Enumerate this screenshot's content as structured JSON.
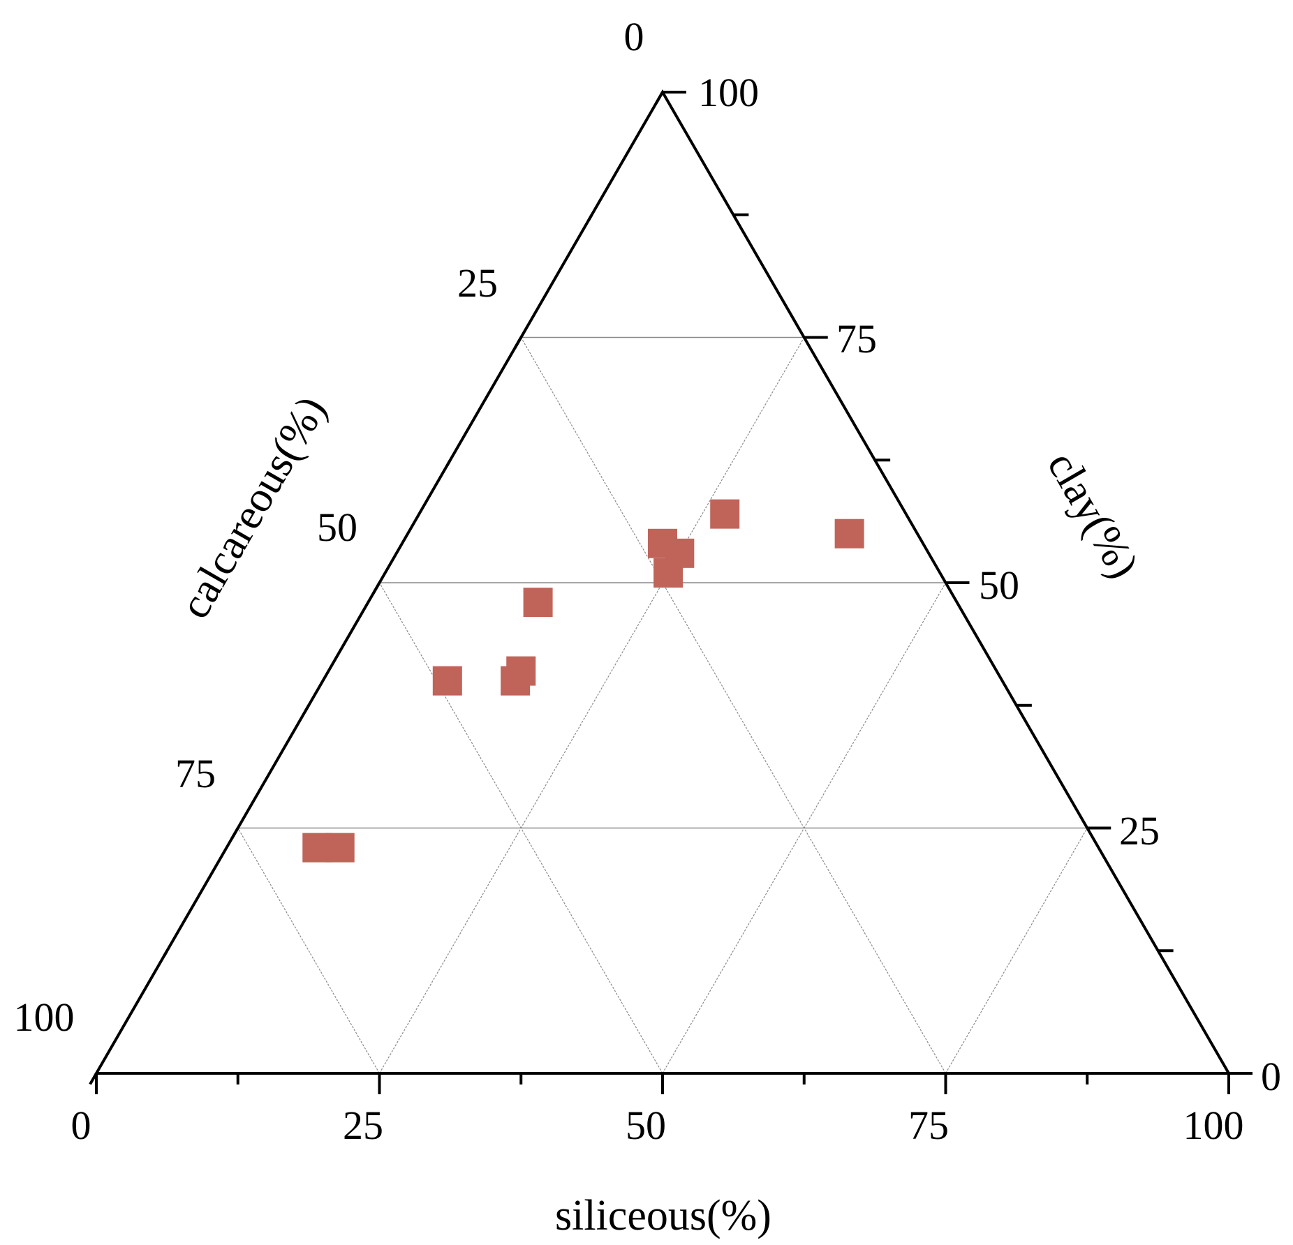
{
  "chart_data": {
    "type": "scatter",
    "subtype": "ternary",
    "marker": "square",
    "marker_color": "#c0645a",
    "axis_color": "#000000",
    "grid_color": "#8a8a8a",
    "grid": true,
    "grid_step": 25,
    "axes": {
      "siliceous": {
        "label": "siliceous(%)",
        "ticks": [
          "0",
          "25",
          "50",
          "75",
          "100"
        ],
        "range": [
          0,
          100
        ]
      },
      "clay": {
        "label": "clay(%)",
        "ticks": [
          "100",
          "75",
          "50",
          "25",
          "0"
        ],
        "range": [
          0,
          100
        ]
      },
      "calcareous": {
        "label": "calcareous(%)",
        "ticks": [
          "0",
          "25",
          "50",
          "75",
          "100"
        ],
        "range": [
          0,
          100
        ]
      }
    },
    "points": [
      {
        "siliceous": 27,
        "clay": 57,
        "calcareous": 16
      },
      {
        "siliceous": 23,
        "clay": 54,
        "calcareous": 23
      },
      {
        "siliceous": 25,
        "clay": 53,
        "calcareous": 22
      },
      {
        "siliceous": 25,
        "clay": 51,
        "calcareous": 24
      },
      {
        "siliceous": 39,
        "clay": 55,
        "calcareous": 6
      },
      {
        "siliceous": 15,
        "clay": 48,
        "calcareous": 37
      },
      {
        "siliceous": 17,
        "clay": 41,
        "calcareous": 42
      },
      {
        "siliceous": 17,
        "clay": 40,
        "calcareous": 43
      },
      {
        "siliceous": 11,
        "clay": 40,
        "calcareous": 49
      },
      {
        "siliceous": 10,
        "clay": 23,
        "calcareous": 67
      },
      {
        "siliceous": 8,
        "clay": 23,
        "calcareous": 69
      }
    ]
  }
}
